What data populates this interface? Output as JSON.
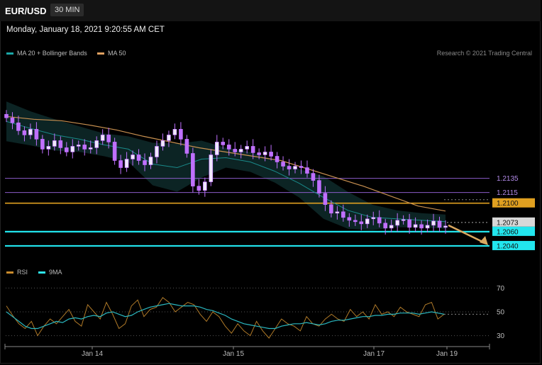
{
  "header": {
    "symbol": "EUR/USD",
    "timeframe": "30 MIN",
    "datetime": "Monday, January 18, 2021 9:20:55 AM CET"
  },
  "legend": {
    "bollinger": {
      "label": "MA 20 + Bollinger Bands",
      "color": "#1aa6a6"
    },
    "ma50": {
      "label": "MA 50",
      "color": "#e0a060"
    }
  },
  "credit": "Research © 2021 Trading Central",
  "indicator_legend": {
    "rsi": {
      "label": "RSI",
      "color": "#c98a2c"
    },
    "ma9": {
      "label": "9MA",
      "color": "#2ee6ee"
    }
  },
  "colors": {
    "resistance_line": "#8a5cc8",
    "pivot_line": "#e0a020",
    "support_line": "#22e6ee",
    "candle": "#f0e8ff",
    "candle_outline": "#c070ff",
    "arrow": "#d9a860",
    "band_fill": "#0e2a2a"
  },
  "chart_data": [
    {
      "type": "line",
      "subtype": "candlestick",
      "title": "EUR/USD",
      "ylim": [
        1.2026,
        1.2294
      ],
      "x_tick_labels": [
        "Jan 14",
        "Jan 15",
        "Jan 17",
        "Jan 19"
      ],
      "levels": [
        {
          "label": "1.2135",
          "value": 1.2135,
          "kind": "resistance"
        },
        {
          "label": "1.2115",
          "value": 1.2115,
          "kind": "resistance"
        },
        {
          "label": "1.2100",
          "value": 1.21,
          "kind": "pivot"
        },
        {
          "label": "1.2073",
          "value": 1.2073,
          "kind": "last"
        },
        {
          "label": "1.2060",
          "value": 1.206,
          "kind": "support"
        },
        {
          "label": "1.2040",
          "value": 1.204,
          "kind": "support"
        }
      ],
      "series": [
        {
          "name": "MA 50",
          "values": [
            1.2222,
            1.2218,
            1.2216,
            1.221,
            1.2203,
            1.2194,
            1.2186,
            1.2178,
            1.2172,
            1.2166,
            1.216,
            1.2148,
            1.2136,
            1.2124,
            1.211,
            1.2096,
            1.2089
          ]
        },
        {
          "name": "MA 20",
          "values": [
            1.2215,
            1.2205,
            1.2196,
            1.219,
            1.2182,
            1.2176,
            1.2155,
            1.215,
            1.2162,
            1.2164,
            1.2158,
            1.2145,
            1.2128,
            1.2108,
            1.209,
            1.208,
            1.2078,
            1.2076,
            1.2074
          ]
        }
      ],
      "candles_close": [
        1.222,
        1.2213,
        1.2202,
        1.2196,
        1.2204,
        1.219,
        1.2176,
        1.218,
        1.2188,
        1.2178,
        1.2172,
        1.218,
        1.2182,
        1.2176,
        1.2178,
        1.2188,
        1.2196,
        1.2186,
        1.216,
        1.215,
        1.2162,
        1.2168,
        1.216,
        1.2154,
        1.2165,
        1.218,
        1.2188,
        1.2196,
        1.2204,
        1.219,
        1.217,
        1.2124,
        1.2118,
        1.213,
        1.2168,
        1.2186,
        1.2182,
        1.2176,
        1.2172,
        1.2176,
        1.218,
        1.2171,
        1.2168,
        1.2172,
        1.2166,
        1.2158,
        1.2152,
        1.2148,
        1.2152,
        1.215,
        1.2142,
        1.2132,
        1.2114,
        1.2098,
        1.2086,
        1.2088,
        1.208,
        1.2076,
        1.2074,
        1.2071,
        1.2078,
        1.208,
        1.2072,
        1.2065,
        1.2069,
        1.2076,
        1.2077,
        1.2066,
        1.207,
        1.2065,
        1.2069,
        1.2075,
        1.2066,
        1.2068
      ]
    },
    {
      "type": "line",
      "title": "RSI",
      "ylim": [
        25,
        75
      ],
      "y_ticks": [
        30,
        50,
        70
      ],
      "series": [
        {
          "name": "RSI",
          "values": [
            55,
            47,
            40,
            36,
            42,
            30,
            38,
            44,
            40,
            46,
            52,
            42,
            38,
            56,
            50,
            44,
            58,
            48,
            36,
            40,
            55,
            60,
            46,
            52,
            54,
            62,
            58,
            50,
            54,
            58,
            56,
            48,
            42,
            50,
            46,
            38,
            32,
            40,
            34,
            30,
            42,
            34,
            28,
            36,
            44,
            40,
            38,
            34,
            46,
            40,
            38,
            44,
            48,
            44,
            42,
            52,
            46,
            50,
            44,
            56,
            48,
            50,
            46,
            54,
            50,
            48,
            46,
            56,
            58,
            44,
            48
          ]
        },
        {
          "name": "9MA",
          "values": [
            50,
            46,
            42,
            38,
            36,
            36,
            38,
            40,
            42,
            41,
            44,
            45,
            44,
            46,
            47,
            46,
            49,
            50,
            48,
            46,
            47,
            50,
            52,
            54,
            55,
            56,
            57,
            56,
            55,
            55,
            55,
            54,
            52,
            51,
            49,
            47,
            44,
            42,
            40,
            39,
            38,
            37,
            36,
            36,
            38,
            39,
            40,
            40,
            41,
            40,
            39,
            40,
            42,
            43,
            43,
            44,
            45,
            46,
            46,
            47,
            47,
            48,
            48,
            49,
            49,
            49,
            48,
            49,
            50,
            49,
            48
          ]
        }
      ]
    }
  ]
}
